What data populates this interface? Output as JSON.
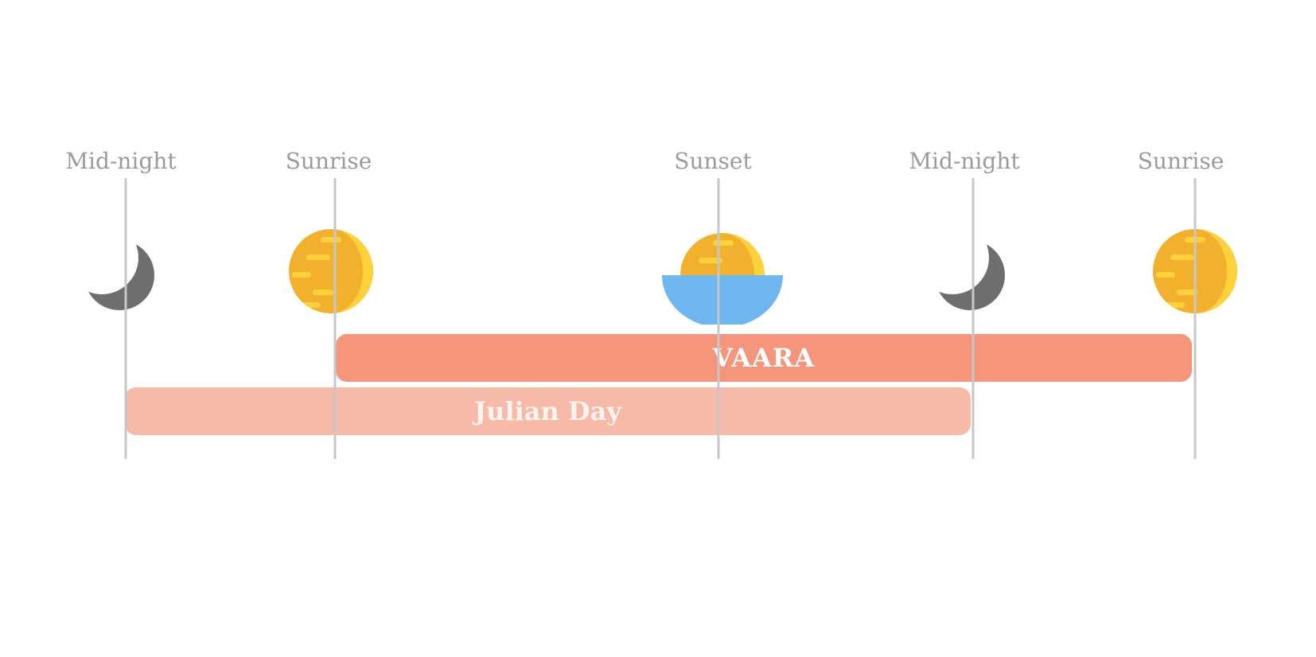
{
  "timeline": {
    "markers": [
      {
        "label": "Mid-night",
        "icon": "moon-icon"
      },
      {
        "label": "Sunrise",
        "icon": "sun-icon"
      },
      {
        "label": "Sunset",
        "icon": "sunset-icon"
      },
      {
        "label": "Mid-night",
        "icon": "moon-icon"
      },
      {
        "label": "Sunrise",
        "icon": "sun-icon"
      }
    ]
  },
  "spans": {
    "vaara": {
      "label": "VAARA",
      "color": "#f5967c",
      "from": "Sunrise",
      "to": "Sunrise"
    },
    "julian_day": {
      "label": "Julian Day",
      "color": "#f7b9a8",
      "from": "Mid-night",
      "to": "Mid-night"
    }
  },
  "colors": {
    "moon": "#6e6e6e",
    "sun_light": "#fdd13a",
    "sun_dark": "#f2b12c",
    "water": "#6fb7f0",
    "line": "#c7c7c7",
    "label": "#9b9b9b"
  }
}
